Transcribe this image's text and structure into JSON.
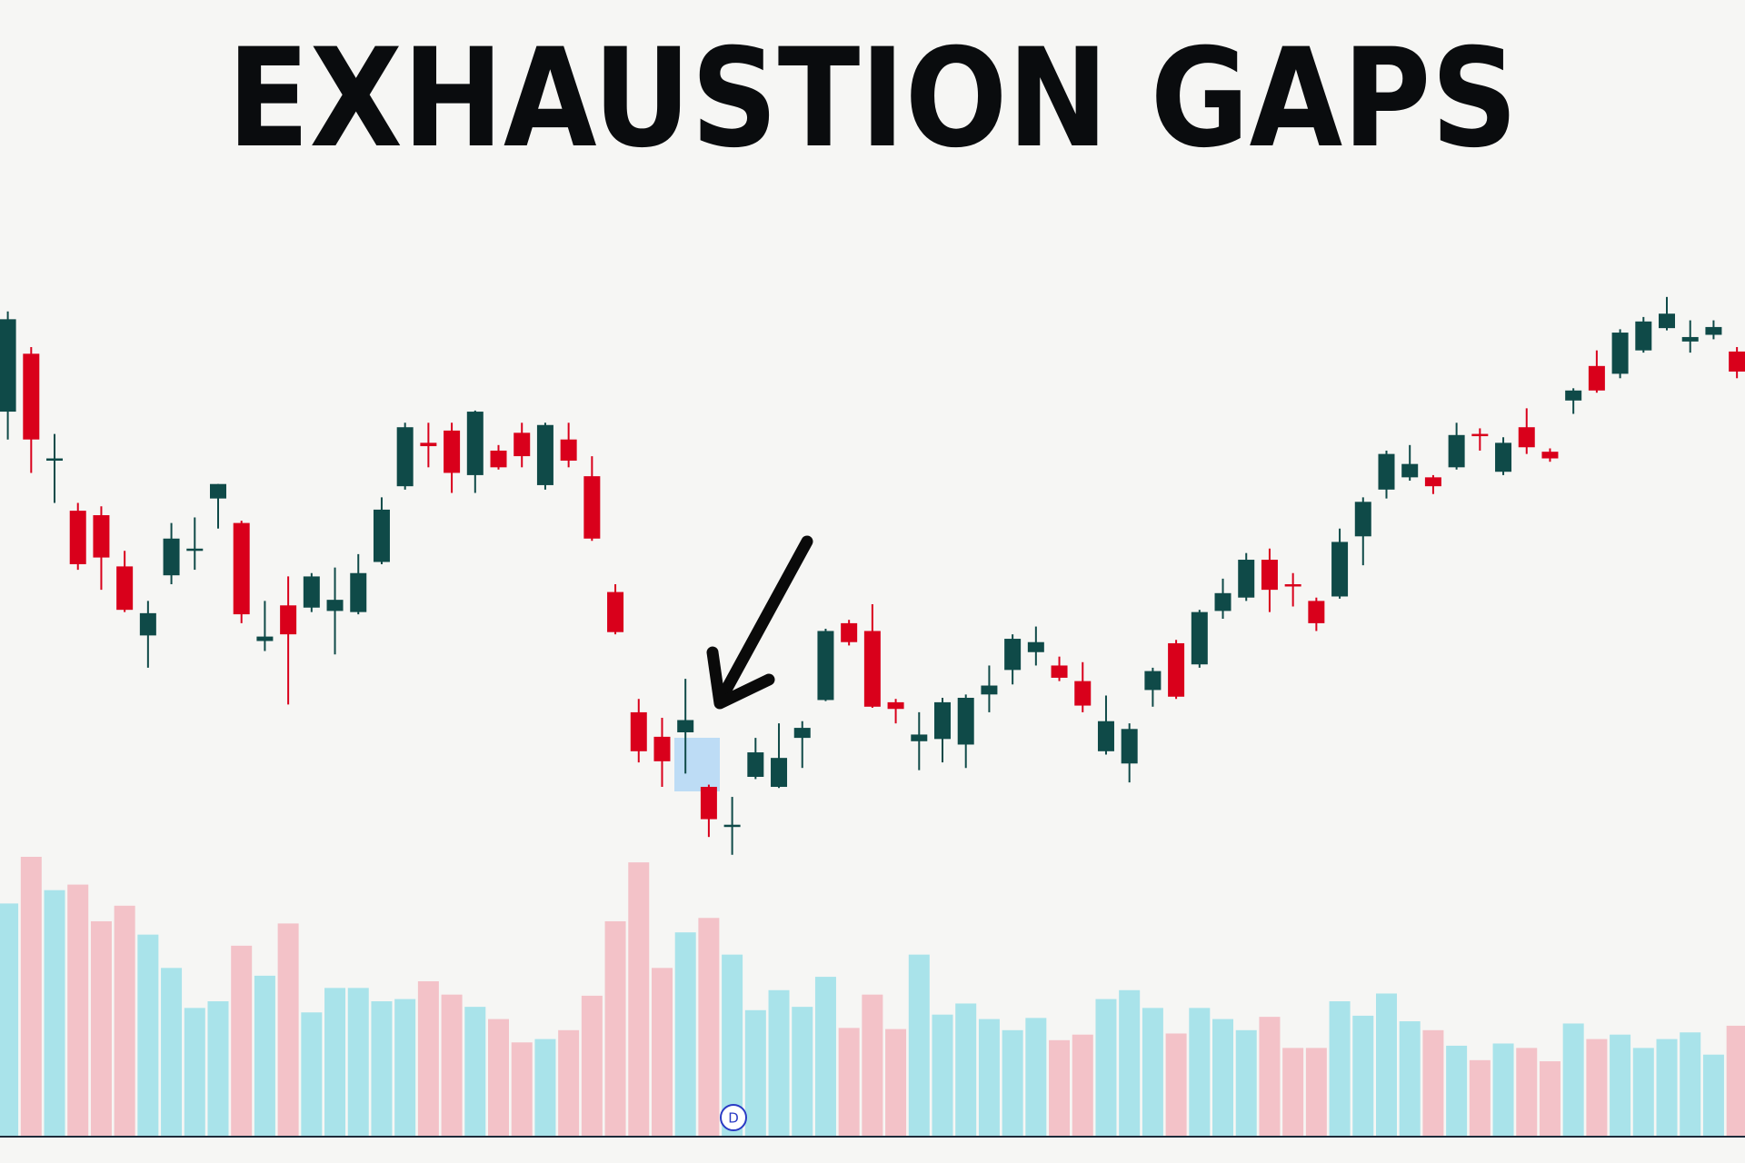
{
  "chart_data": {
    "type": "candlestick",
    "title": "EXHAUSTION GAPS",
    "marker_label": "D",
    "up_color": "#0f4a48",
    "down_color": "#d9001b",
    "ylim": [
      200,
      750
    ],
    "open": [
      630,
      682,
      586,
      541,
      537,
      491,
      429,
      483,
      505,
      552,
      530,
      424,
      456,
      454,
      451,
      450,
      495,
      563,
      602,
      613,
      573,
      595,
      611,
      564,
      605,
      572,
      468,
      360,
      338,
      342,
      293,
      257,
      302,
      293,
      337,
      371,
      440,
      433,
      369,
      334,
      336,
      331,
      376,
      398,
      414,
      402,
      388,
      325,
      314,
      380,
      422,
      403,
      451,
      463,
      497,
      475,
      460,
      464,
      518,
      560,
      571,
      571,
      580,
      610,
      576,
      616,
      594,
      640,
      671,
      664,
      685,
      705,
      693,
      699,
      684
    ],
    "close": [
      713,
      605,
      588,
      493,
      499,
      452,
      449,
      516,
      507,
      565,
      448,
      428,
      430,
      482,
      461,
      485,
      542,
      616,
      599,
      575,
      630,
      580,
      590,
      618,
      586,
      516,
      432,
      325,
      316,
      353,
      264,
      259,
      324,
      319,
      346,
      433,
      423,
      365,
      363,
      340,
      369,
      373,
      384,
      426,
      423,
      391,
      366,
      352,
      345,
      397,
      374,
      450,
      467,
      497,
      470,
      473,
      440,
      513,
      549,
      592,
      583,
      563,
      609,
      608,
      602,
      598,
      588,
      649,
      649,
      701,
      711,
      718,
      697,
      706,
      666
    ],
    "high": [
      720,
      688,
      610,
      548,
      545,
      505,
      460,
      530,
      535,
      565,
      532,
      460,
      482,
      485,
      490,
      502,
      553,
      620,
      620,
      620,
      631,
      600,
      620,
      620,
      620,
      590,
      475,
      372,
      355,
      390,
      295,
      284,
      337,
      350,
      352,
      435,
      443,
      457,
      372,
      360,
      373,
      376,
      402,
      430,
      437,
      410,
      405,
      375,
      350,
      400,
      425,
      452,
      480,
      503,
      507,
      485,
      463,
      525,
      553,
      595,
      600,
      573,
      620,
      615,
      607,
      633,
      597,
      651,
      685,
      704,
      715,
      733,
      712,
      712,
      688
    ],
    "low": [
      605,
      575,
      548,
      488,
      470,
      450,
      400,
      475,
      488,
      525,
      440,
      415,
      367,
      450,
      412,
      448,
      493,
      560,
      580,
      557,
      557,
      578,
      580,
      560,
      580,
      514,
      430,
      315,
      293,
      305,
      248,
      232,
      300,
      292,
      310,
      370,
      420,
      364,
      350,
      308,
      315,
      310,
      360,
      385,
      402,
      388,
      360,
      322,
      297,
      365,
      372,
      400,
      444,
      460,
      450,
      455,
      433,
      462,
      492,
      552,
      568,
      556,
      578,
      595,
      573,
      592,
      585,
      628,
      647,
      660,
      683,
      703,
      683,
      695,
      660
    ],
    "volume_ylim": [
      0,
      260
    ],
    "volume": [
      209,
      251,
      221,
      226,
      193,
      207,
      181,
      151,
      115,
      121,
      171,
      144,
      191,
      111,
      133,
      133,
      121,
      123,
      139,
      127,
      116,
      105,
      84,
      87,
      95,
      126,
      193,
      246,
      151,
      183,
      196,
      163,
      113,
      131,
      116,
      143,
      97,
      127,
      96,
      163,
      109,
      119,
      105,
      95,
      106,
      86,
      91,
      123,
      131,
      115,
      92,
      115,
      105,
      95,
      107,
      79,
      79,
      121,
      108,
      128,
      103,
      95,
      81,
      68,
      83,
      79,
      67,
      101,
      87,
      91,
      79,
      87,
      93,
      73,
      99
    ],
    "volume_colors": [
      "#a9e3ea",
      "#f3c2c8",
      "#a9e3ea",
      "#f3c2c8",
      "#f3c2c8",
      "#f3c2c8",
      "#a9e3ea",
      "#a9e3ea",
      "#a9e3ea",
      "#a9e3ea",
      "#f3c2c8",
      "#a9e3ea",
      "#f3c2c8",
      "#a9e3ea",
      "#a9e3ea",
      "#a9e3ea",
      "#a9e3ea",
      "#a9e3ea",
      "#f3c2c8",
      "#f3c2c8",
      "#a9e3ea",
      "#f3c2c8",
      "#f3c2c8",
      "#a9e3ea",
      "#f3c2c8",
      "#f3c2c8",
      "#f3c2c8",
      "#f3c2c8",
      "#f3c2c8",
      "#a9e3ea",
      "#f3c2c8",
      "#a9e3ea",
      "#a9e3ea",
      "#a9e3ea",
      "#a9e3ea",
      "#a9e3ea",
      "#f3c2c8",
      "#f3c2c8",
      "#f3c2c8",
      "#a9e3ea",
      "#a9e3ea",
      "#a9e3ea",
      "#a9e3ea",
      "#a9e3ea",
      "#a9e3ea",
      "#f3c2c8",
      "#f3c2c8",
      "#a9e3ea",
      "#a9e3ea",
      "#a9e3ea",
      "#f3c2c8",
      "#a9e3ea",
      "#a9e3ea",
      "#a9e3ea",
      "#f3c2c8",
      "#f3c2c8",
      "#f3c2c8",
      "#a9e3ea",
      "#a9e3ea",
      "#a9e3ea",
      "#a9e3ea",
      "#f3c2c8",
      "#a9e3ea",
      "#f3c2c8",
      "#a9e3ea",
      "#f3c2c8",
      "#f3c2c8",
      "#a9e3ea",
      "#f3c2c8",
      "#a9e3ea",
      "#a9e3ea",
      "#a9e3ea",
      "#a9e3ea",
      "#a9e3ea",
      "#f3c2c8"
    ]
  }
}
